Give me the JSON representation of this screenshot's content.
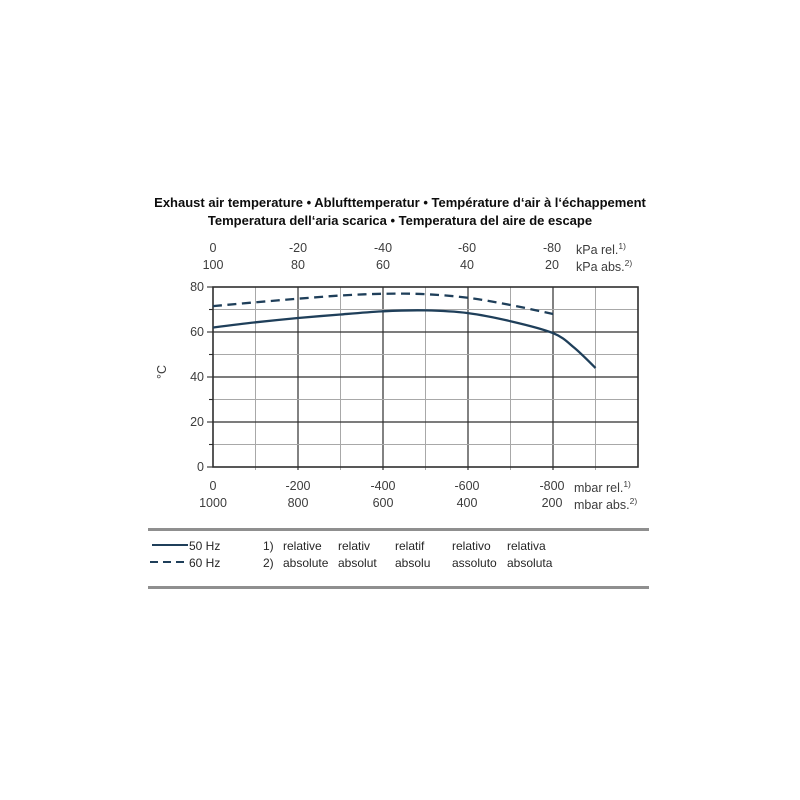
{
  "title": {
    "line1": "Exhaust air temperature • Ablufttemperatur • Température d‘air à l‘échappement",
    "line2": "Temperatura dell‘aria scarica • Temperatura del aire de escape"
  },
  "chart_data": {
    "type": "line",
    "title": "Exhaust air temperature",
    "x_axes": {
      "top_rel": {
        "ticks": [
          "0",
          "-20",
          "-40",
          "-60",
          "-80"
        ],
        "unit": "kPa rel.",
        "footnote": "1)"
      },
      "top_abs": {
        "ticks": [
          "100",
          "80",
          "60",
          "40",
          "20"
        ],
        "unit": "kPa abs.",
        "footnote": "2)"
      },
      "bottom_rel": {
        "ticks": [
          "0",
          "-200",
          "-400",
          "-600",
          "-800"
        ],
        "unit": "mbar rel.",
        "footnote": "1)"
      },
      "bottom_abs": {
        "ticks": [
          "1000",
          "800",
          "600",
          "400",
          "200"
        ],
        "unit": "mbar abs.",
        "footnote": "2)"
      },
      "range_mbar_rel": [
        0,
        -1000
      ]
    },
    "y_axis": {
      "unit": "°C",
      "ticks": [
        "80",
        "60",
        "40",
        "20",
        "0"
      ],
      "range": [
        0,
        80
      ],
      "major_step": 20,
      "minor_step": 10
    },
    "grid": {
      "x_step_mbar": 100,
      "y_step_c": 10,
      "grid_on": true
    },
    "series": [
      {
        "name": "50 Hz",
        "style": "solid",
        "points": [
          [
            0,
            62
          ],
          [
            -100,
            64.3
          ],
          [
            -200,
            66.2
          ],
          [
            -300,
            67.8
          ],
          [
            -400,
            69.2
          ],
          [
            -500,
            69.6
          ],
          [
            -600,
            68.4
          ],
          [
            -700,
            64.8
          ],
          [
            -800,
            59.5
          ],
          [
            -850,
            53
          ],
          [
            -900,
            44
          ]
        ]
      },
      {
        "name": "60 Hz",
        "style": "dashed",
        "points": [
          [
            0,
            71.5
          ],
          [
            -100,
            73.2
          ],
          [
            -200,
            74.8
          ],
          [
            -300,
            76.2
          ],
          [
            -400,
            77
          ],
          [
            -500,
            76.8
          ],
          [
            -600,
            75.2
          ],
          [
            -700,
            72
          ],
          [
            -800,
            68
          ]
        ]
      }
    ],
    "colors": {
      "curve": "#1f3f5a",
      "grid_major": "#2f2f2f",
      "grid_minor": "#a8a8a8",
      "divider": "#8f8f8f"
    }
  },
  "legend": {
    "items": [
      {
        "label": "50 Hz",
        "style": "solid"
      },
      {
        "label": "60 Hz",
        "style": "dashed"
      }
    ]
  },
  "footnotes": [
    {
      "marker": "1)",
      "terms": [
        "relative",
        "relativ",
        "relatif",
        "relativo",
        "relativa"
      ]
    },
    {
      "marker": "2)",
      "terms": [
        "absolute",
        "absolut",
        "absolu",
        "assoluto",
        "absoluta"
      ]
    }
  ]
}
